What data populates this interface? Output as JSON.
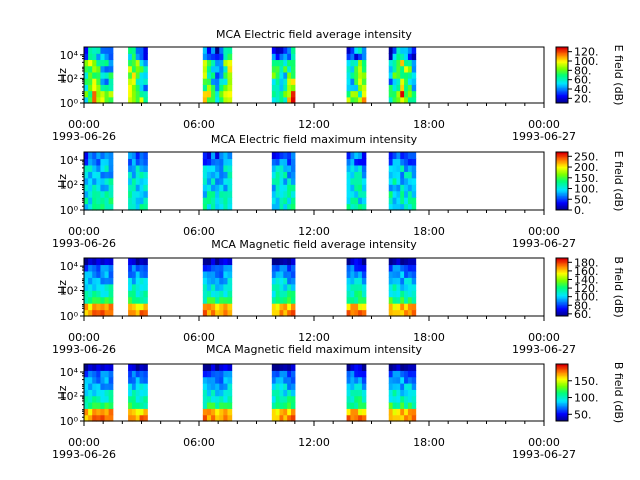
{
  "chart_data": [
    {
      "type": "heatmap",
      "title": "MCA  Electric field average intensity",
      "ylabel": "Hz",
      "yticks": [
        "10⁰",
        "10²",
        "10⁴"
      ],
      "ylim": [
        1,
        20000
      ],
      "yscale": "log",
      "xlim": [
        "1993-06-26 00:00",
        "1993-06-27 00:00"
      ],
      "xticks": [
        "00:00",
        "06:00",
        "12:00",
        "18:00",
        "00:00"
      ],
      "xdates": {
        "first": "1993-06-26",
        "last": "1993-06-27"
      },
      "colorbar": {
        "label": "E field (dB)",
        "range": [
          10,
          130
        ],
        "ticks": [
          "20.",
          "40.",
          "60.",
          "80.",
          "100.",
          "120."
        ]
      },
      "scheme": "e_avg"
    },
    {
      "type": "heatmap",
      "title": "MCA  Electric field maximum intensity",
      "ylabel": "Hz",
      "yticks": [
        "10⁰",
        "10²",
        "10⁴"
      ],
      "ylim": [
        1,
        20000
      ],
      "yscale": "log",
      "xlim": [
        "1993-06-26 00:00",
        "1993-06-27 00:00"
      ],
      "xticks": [
        "00:00",
        "06:00",
        "12:00",
        "18:00",
        "00:00"
      ],
      "xdates": {
        "first": "1993-06-26",
        "last": "1993-06-27"
      },
      "colorbar": {
        "label": "E field (dB)",
        "range": [
          0,
          270
        ],
        "ticks": [
          "0.",
          "50.",
          "100.",
          "150.",
          "200.",
          "250."
        ]
      },
      "scheme": "e_max"
    },
    {
      "type": "heatmap",
      "title": "MCA  Magnetic field average intensity",
      "ylabel": "Hz",
      "yticks": [
        "10⁰",
        "10²",
        "10⁴"
      ],
      "ylim": [
        1,
        20000
      ],
      "yscale": "log",
      "xlim": [
        "1993-06-26 00:00",
        "1993-06-27 00:00"
      ],
      "xticks": [
        "00:00",
        "06:00",
        "12:00",
        "18:00",
        "00:00"
      ],
      "xdates": {
        "first": "1993-06-26",
        "last": "1993-06-27"
      },
      "colorbar": {
        "label": "B field (dB)",
        "range": [
          55,
          190
        ],
        "ticks": [
          "60.",
          "80.",
          "100.",
          "120.",
          "140.",
          "160.",
          "180."
        ]
      },
      "scheme": "b"
    },
    {
      "type": "heatmap",
      "title": "MCA  Magnetic field maximum intensity",
      "ylabel": "Hz",
      "yticks": [
        "10⁰",
        "10²",
        "10⁴"
      ],
      "ylim": [
        1,
        20000
      ],
      "yscale": "log",
      "xlim": [
        "1993-06-26 00:00",
        "1993-06-27 00:00"
      ],
      "xticks": [
        "00:00",
        "06:00",
        "12:00",
        "18:00",
        "00:00"
      ],
      "xdates": {
        "first": "1993-06-26",
        "last": "1993-06-27"
      },
      "colorbar": {
        "label": "B field (dB)",
        "range": [
          30,
          200
        ],
        "ticks": [
          "50.",
          "100.",
          "150."
        ]
      },
      "scheme": "b"
    }
  ],
  "data_segments_hours": [
    [
      0.0,
      1.5
    ],
    [
      2.3,
      3.3
    ],
    [
      6.2,
      7.7
    ],
    [
      9.8,
      11.0
    ],
    [
      13.7,
      14.7
    ],
    [
      15.9,
      17.3
    ]
  ]
}
